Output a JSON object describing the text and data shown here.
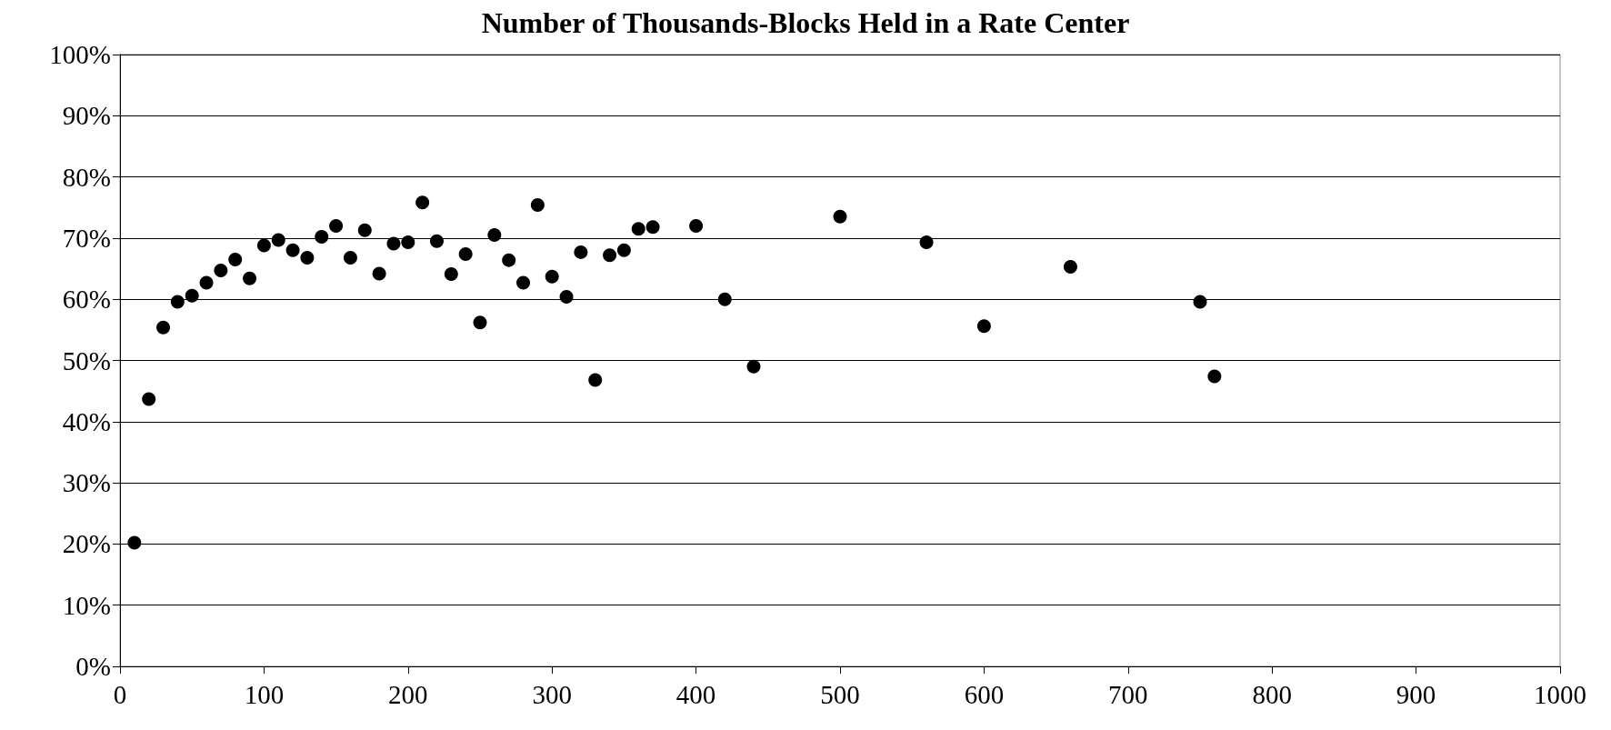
{
  "chart_data": {
    "type": "scatter",
    "title": "Number of Thousands-Blocks Held in a Rate Center",
    "x": [
      10,
      20,
      30,
      40,
      50,
      60,
      70,
      80,
      90,
      100,
      110,
      120,
      130,
      140,
      150,
      160,
      170,
      180,
      190,
      200,
      210,
      220,
      230,
      240,
      250,
      260,
      270,
      280,
      290,
      300,
      310,
      320,
      330,
      340,
      350,
      360,
      370,
      400,
      420,
      440,
      500,
      560,
      600,
      660,
      750,
      760
    ],
    "series": [
      {
        "color": "#000000",
        "values": [
          20.2,
          43.7,
          55.4,
          59.6,
          60.6,
          62.7,
          64.7,
          66.5,
          63.4,
          68.8,
          69.7,
          68.0,
          66.8,
          70.2,
          72.0,
          66.8,
          71.3,
          64.2,
          69.1,
          69.3,
          75.8,
          69.5,
          64.1,
          67.4,
          56.2,
          70.5,
          66.4,
          62.7,
          75.4,
          63.7,
          60.4,
          67.7,
          46.8,
          67.2,
          68.0,
          71.5,
          71.8,
          72.0,
          60.0,
          49.0,
          73.5,
          69.3,
          55.6,
          65.3,
          59.6,
          47.4
        ]
      }
    ],
    "xlim": [
      0,
      1000
    ],
    "xticks": [
      0,
      100,
      200,
      300,
      400,
      500,
      600,
      700,
      800,
      900,
      1000
    ],
    "ylim": [
      0,
      100
    ],
    "yticks": [
      {
        "value": 0,
        "label": "0%"
      },
      {
        "value": 10,
        "label": "10%"
      },
      {
        "value": 20,
        "label": "20%"
      },
      {
        "value": 30,
        "label": "30%"
      },
      {
        "value": 40,
        "label": "40%"
      },
      {
        "value": 50,
        "label": "50%"
      },
      {
        "value": 60,
        "label": "60%"
      },
      {
        "value": 70,
        "label": "70%"
      },
      {
        "value": 80,
        "label": "80%"
      },
      {
        "value": 90,
        "label": "90%"
      },
      {
        "value": 100,
        "label": "100%"
      }
    ],
    "grid": "y",
    "marker": "circle"
  }
}
